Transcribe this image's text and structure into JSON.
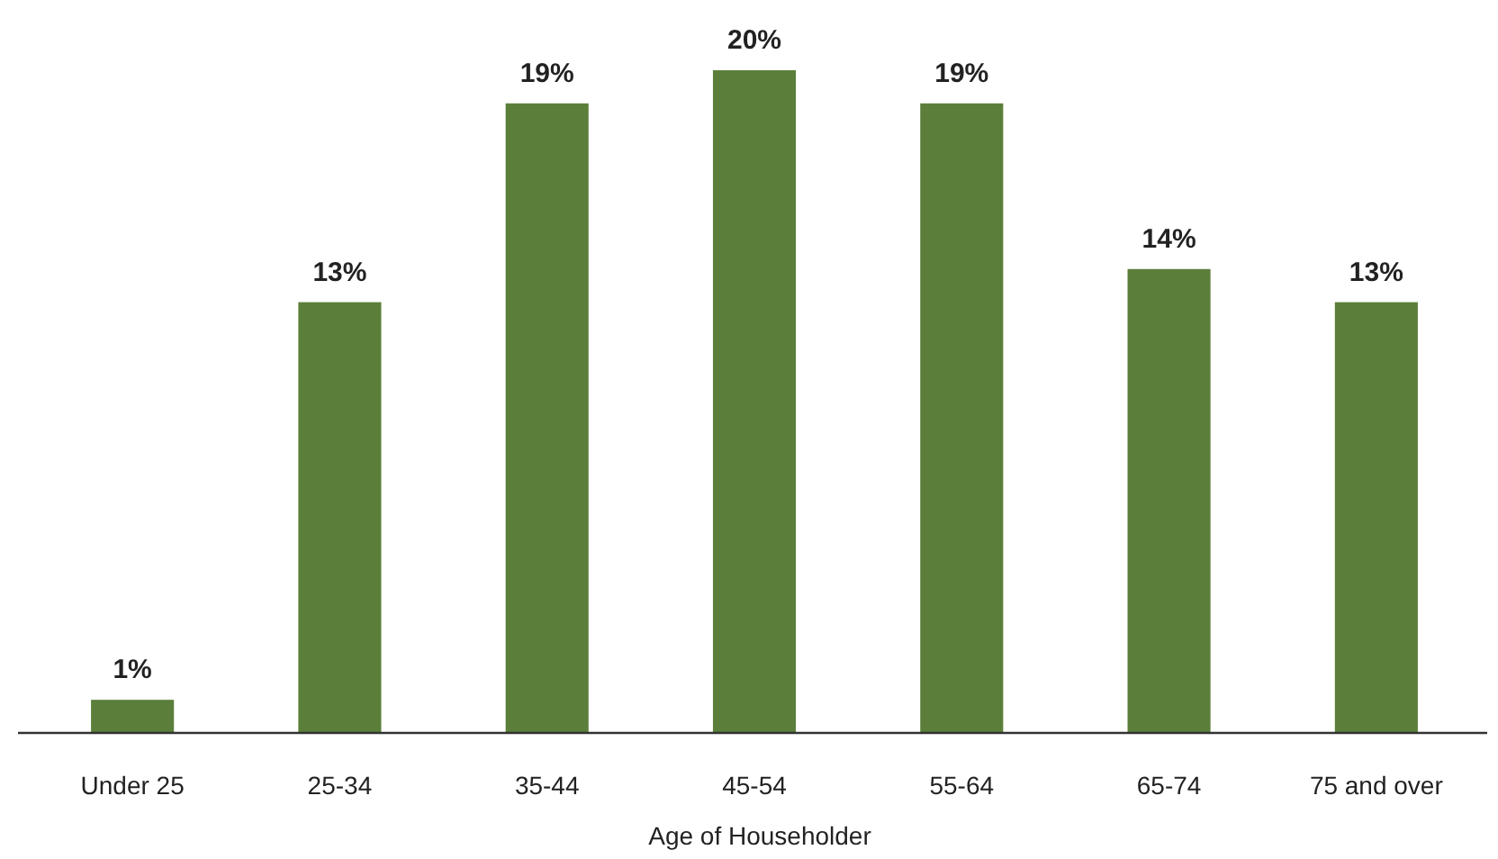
{
  "chart_data": {
    "type": "bar",
    "xlabel": "Age of Householder",
    "categories": [
      "Under 25",
      "25-34",
      "35-44",
      "45-54",
      "55-64",
      "65-74",
      "75 and over"
    ],
    "values": [
      1,
      13,
      19,
      20,
      19,
      14,
      13
    ],
    "color": "#5b7f3a",
    "data_labels": true,
    "value_labels": [
      "1%",
      "13%",
      "19%",
      "20%",
      "19%",
      "14%",
      "13%"
    ]
  }
}
